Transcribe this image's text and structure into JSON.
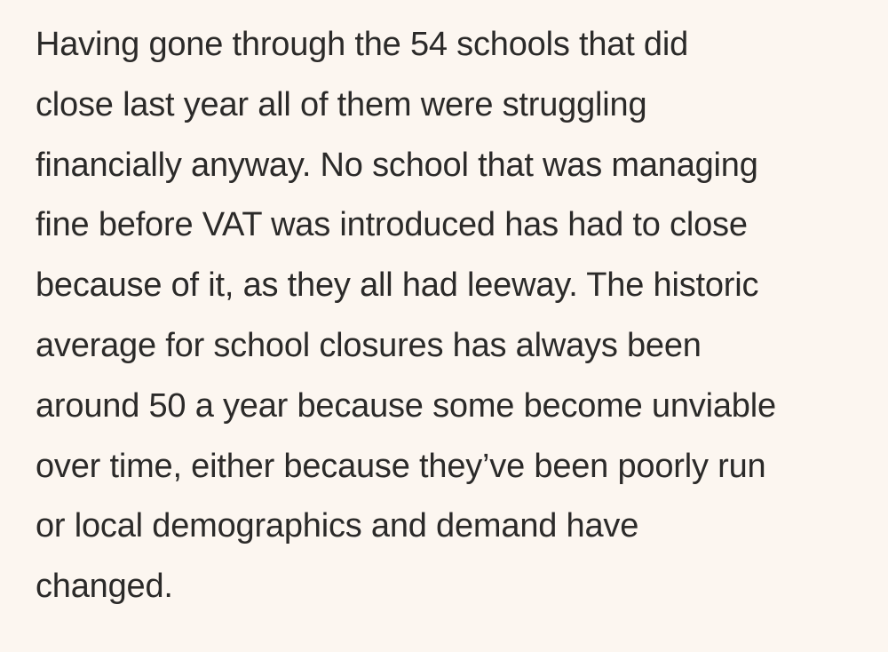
{
  "comment": {
    "lines": [
      "Having gone through the 54 schools that did",
      "close last year all of them were struggling",
      "financially anyway. No school that was managing",
      "fine before VAT was introduced has had to close",
      "because of it, as they all had leeway. The historic",
      "average for school closures has always been",
      "around 50 a year because some become unviable",
      "over time, either because they’ve been poorly run",
      "or local demographics and demand have",
      "changed."
    ]
  },
  "colors": {
    "background": "#fcf6f0",
    "text": "#2b2a29"
  }
}
